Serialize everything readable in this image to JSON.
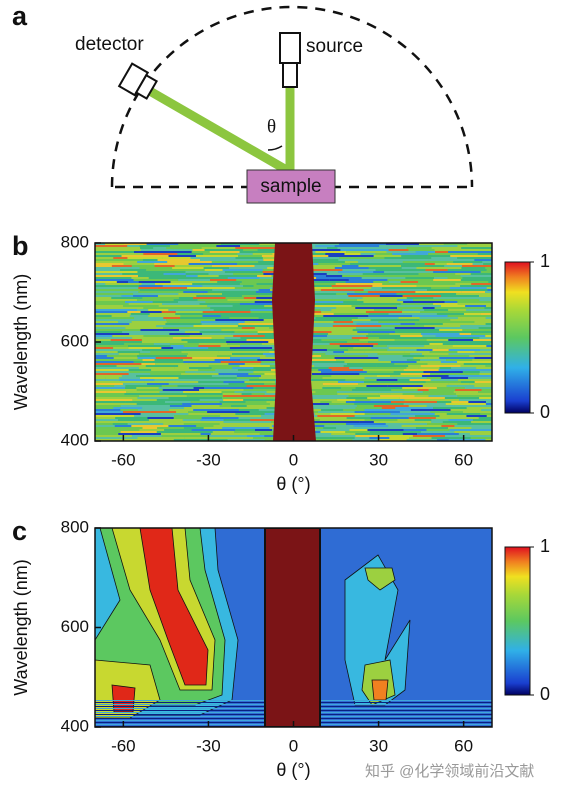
{
  "diagram": {
    "panel": "a",
    "detector": "detector",
    "source": "source",
    "sample": "sample",
    "angle": "θ"
  },
  "chart_data": [
    {
      "type": "heatmap",
      "panel": "b",
      "xlabel": "θ (°)",
      "ylabel": "Wavelength (nm)",
      "xlim": [
        -70,
        70
      ],
      "xticks": [
        -60,
        -30,
        0,
        30,
        60
      ],
      "ylim": [
        400,
        800
      ],
      "yticks": [
        400,
        600,
        800
      ],
      "clim": [
        0,
        1
      ],
      "cticks": [
        0,
        1
      ]
    },
    {
      "type": "heatmap",
      "panel": "c",
      "xlabel": "θ (°)",
      "ylabel": "Wavelength (nm)",
      "xlim": [
        -70,
        70
      ],
      "xticks": [
        -60,
        -30,
        0,
        30,
        60
      ],
      "ylim": [
        400,
        800
      ],
      "yticks": [
        400,
        600,
        800
      ],
      "clim": [
        0,
        1
      ],
      "cticks": [
        0,
        1
      ]
    }
  ],
  "watermark": "知乎 @化学领域前沿文献"
}
